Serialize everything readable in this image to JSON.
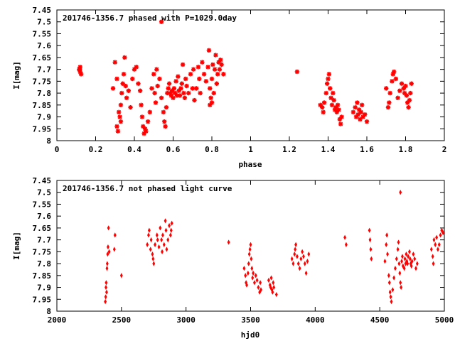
{
  "chart_data": [
    {
      "type": "scatter",
      "title": "201746-1356.7 phased with P=1029.0day",
      "xlabel": "phase",
      "ylabel": "I[mag]",
      "xlim": [
        0,
        2
      ],
      "ylim": [
        8,
        7.45
      ],
      "y_inverted": true,
      "grid": false,
      "marker": "star",
      "color": "#ff0000",
      "xticks": [
        "0",
        "0.2",
        "0.4",
        "0.6",
        "0.8",
        "1",
        "1.2",
        "1.4",
        "1.6",
        "1.8",
        "2"
      ],
      "yticks": [
        "7.45",
        "7.5",
        "7.55",
        "7.6",
        "7.65",
        "7.7",
        "7.75",
        "7.8",
        "7.85",
        "7.9",
        "7.95",
        "8"
      ],
      "points": [
        [
          0.12,
          7.69
        ],
        [
          0.115,
          7.7
        ],
        [
          0.12,
          7.71
        ],
        [
          0.125,
          7.72
        ],
        [
          0.118,
          7.7
        ],
        [
          0.29,
          7.78
        ],
        [
          0.3,
          7.67
        ],
        [
          0.31,
          7.74
        ],
        [
          0.315,
          7.96
        ],
        [
          0.31,
          7.94
        ],
        [
          0.32,
          7.88
        ],
        [
          0.325,
          7.9
        ],
        [
          0.33,
          7.92
        ],
        [
          0.33,
          7.85
        ],
        [
          0.335,
          7.8
        ],
        [
          0.34,
          7.76
        ],
        [
          0.345,
          7.72
        ],
        [
          0.35,
          7.65
        ],
        [
          0.355,
          7.77
        ],
        [
          0.36,
          7.82
        ],
        [
          0.37,
          7.79
        ],
        [
          0.38,
          7.86
        ],
        [
          0.39,
          7.74
        ],
        [
          0.4,
          7.7
        ],
        [
          0.41,
          7.69
        ],
        [
          0.42,
          7.76
        ],
        [
          0.43,
          7.79
        ],
        [
          0.435,
          7.85
        ],
        [
          0.44,
          7.9
        ],
        [
          0.445,
          7.94
        ],
        [
          0.45,
          7.97
        ],
        [
          0.455,
          7.95
        ],
        [
          0.46,
          7.96
        ],
        [
          0.47,
          7.92
        ],
        [
          0.48,
          7.88
        ],
        [
          0.49,
          7.78
        ],
        [
          0.5,
          7.72
        ],
        [
          0.505,
          7.8
        ],
        [
          0.51,
          7.84
        ],
        [
          0.515,
          7.7
        ],
        [
          0.52,
          7.77
        ],
        [
          0.53,
          7.74
        ],
        [
          0.54,
          7.82
        ],
        [
          0.55,
          7.88
        ],
        [
          0.555,
          7.92
        ],
        [
          0.56,
          7.94
        ],
        [
          0.565,
          7.86
        ],
        [
          0.57,
          7.8
        ],
        [
          0.575,
          7.78
        ],
        [
          0.58,
          7.76
        ],
        [
          0.585,
          7.8
        ],
        [
          0.59,
          7.81
        ],
        [
          0.595,
          7.79
        ],
        [
          0.6,
          7.82
        ],
        [
          0.605,
          7.78
        ],
        [
          0.61,
          7.8
        ],
        [
          0.615,
          7.75
        ],
        [
          0.62,
          7.81
        ],
        [
          0.625,
          7.73
        ],
        [
          0.63,
          7.79
        ],
        [
          0.635,
          7.81
        ],
        [
          0.64,
          7.78
        ],
        [
          0.645,
          7.76
        ],
        [
          0.65,
          7.68
        ],
        [
          0.655,
          7.8
        ],
        [
          0.66,
          7.82
        ],
        [
          0.665,
          7.74
        ],
        [
          0.67,
          7.77
        ],
        [
          0.68,
          7.8
        ],
        [
          0.69,
          7.72
        ],
        [
          0.7,
          7.78
        ],
        [
          0.705,
          7.7
        ],
        [
          0.71,
          7.83
        ],
        [
          0.72,
          7.78
        ],
        [
          0.73,
          7.69
        ],
        [
          0.735,
          7.74
        ],
        [
          0.74,
          7.8
        ],
        [
          0.75,
          7.67
        ],
        [
          0.76,
          7.72
        ],
        [
          0.77,
          7.75
        ],
        [
          0.78,
          7.69
        ],
        [
          0.785,
          7.62
        ],
        [
          0.79,
          7.78
        ],
        [
          0.795,
          7.82
        ],
        [
          0.8,
          7.74
        ],
        [
          0.805,
          7.68
        ],
        [
          0.81,
          7.8
        ],
        [
          0.815,
          7.7
        ],
        [
          0.82,
          7.64
        ],
        [
          0.825,
          7.76
        ],
        [
          0.83,
          7.72
        ],
        [
          0.835,
          7.67
        ],
        [
          0.84,
          7.7
        ],
        [
          0.845,
          7.66
        ],
        [
          0.85,
          7.68
        ],
        [
          0.86,
          7.72
        ],
        [
          0.79,
          7.85
        ],
        [
          0.8,
          7.84
        ],
        [
          1.24,
          7.71
        ],
        [
          1.36,
          7.85
        ],
        [
          1.37,
          7.86
        ],
        [
          1.375,
          7.88
        ],
        [
          1.38,
          7.84
        ],
        [
          1.39,
          7.8
        ],
        [
          1.395,
          7.76
        ],
        [
          1.4,
          7.74
        ],
        [
          1.405,
          7.72
        ],
        [
          1.41,
          7.78
        ],
        [
          1.415,
          7.82
        ],
        [
          1.42,
          7.85
        ],
        [
          1.425,
          7.8
        ],
        [
          1.43,
          7.83
        ],
        [
          1.435,
          7.87
        ],
        [
          1.44,
          7.86
        ],
        [
          1.445,
          7.88
        ],
        [
          1.45,
          7.85
        ],
        [
          1.455,
          7.87
        ],
        [
          1.46,
          7.91
        ],
        [
          1.465,
          7.93
        ],
        [
          1.47,
          7.9
        ],
        [
          1.53,
          7.88
        ],
        [
          1.54,
          7.86
        ],
        [
          1.545,
          7.9
        ],
        [
          1.55,
          7.84
        ],
        [
          1.555,
          7.89
        ],
        [
          1.56,
          7.87
        ],
        [
          1.565,
          7.91
        ],
        [
          1.57,
          7.88
        ],
        [
          1.575,
          7.85
        ],
        [
          1.58,
          7.9
        ],
        [
          1.59,
          7.89
        ],
        [
          1.6,
          7.92
        ],
        [
          1.7,
          7.78
        ],
        [
          1.71,
          7.86
        ],
        [
          1.715,
          7.84
        ],
        [
          1.72,
          7.8
        ],
        [
          1.73,
          7.75
        ],
        [
          1.735,
          7.72
        ],
        [
          1.74,
          7.71
        ],
        [
          1.75,
          7.74
        ],
        [
          1.76,
          7.82
        ],
        [
          1.77,
          7.79
        ],
        [
          1.78,
          7.76
        ],
        [
          1.79,
          7.78
        ],
        [
          1.795,
          7.8
        ],
        [
          1.8,
          7.77
        ],
        [
          1.805,
          7.81
        ],
        [
          1.81,
          7.84
        ],
        [
          1.815,
          7.86
        ],
        [
          1.82,
          7.83
        ],
        [
          1.825,
          7.8
        ],
        [
          1.83,
          7.76
        ],
        [
          0.54,
          7.5
        ]
      ]
    },
    {
      "type": "scatter",
      "title": "201746-1356.7 not phased light curve",
      "xlabel": "hjd0",
      "ylabel": "I[mag]",
      "xlim": [
        2000,
        5000
      ],
      "ylim": [
        8,
        7.45
      ],
      "y_inverted": true,
      "grid": false,
      "marker": "diamond",
      "color": "#ff0000",
      "xticks": [
        "2000",
        "2500",
        "3000",
        "3500",
        "4000",
        "4500",
        "5000"
      ],
      "yticks": [
        "7.45",
        "7.5",
        "7.55",
        "7.6",
        "7.65",
        "7.7",
        "7.75",
        "7.8",
        "7.85",
        "7.9",
        "7.95",
        "8"
      ],
      "points": [
        [
          2375,
          7.96
        ],
        [
          2378,
          7.94
        ],
        [
          2380,
          7.9
        ],
        [
          2382,
          7.88
        ],
        [
          2385,
          7.92
        ],
        [
          2388,
          7.82
        ],
        [
          2390,
          7.8
        ],
        [
          2393,
          7.76
        ],
        [
          2396,
          7.73
        ],
        [
          2400,
          7.65
        ],
        [
          2405,
          7.75
        ],
        [
          2445,
          7.74
        ],
        [
          2450,
          7.68
        ],
        [
          2500,
          7.85
        ],
        [
          2700,
          7.72
        ],
        [
          2710,
          7.68
        ],
        [
          2715,
          7.66
        ],
        [
          2725,
          7.74
        ],
        [
          2730,
          7.7
        ],
        [
          2740,
          7.76
        ],
        [
          2745,
          7.78
        ],
        [
          2750,
          7.8
        ],
        [
          2760,
          7.72
        ],
        [
          2775,
          7.68
        ],
        [
          2780,
          7.7
        ],
        [
          2790,
          7.73
        ],
        [
          2800,
          7.65
        ],
        [
          2810,
          7.7
        ],
        [
          2815,
          7.75
        ],
        [
          2820,
          7.68
        ],
        [
          2830,
          7.72
        ],
        [
          2840,
          7.62
        ],
        [
          2845,
          7.66
        ],
        [
          2850,
          7.74
        ],
        [
          2860,
          7.7
        ],
        [
          2870,
          7.64
        ],
        [
          2880,
          7.68
        ],
        [
          2885,
          7.66
        ],
        [
          2890,
          7.63
        ],
        [
          3330,
          7.71
        ],
        [
          3450,
          7.82
        ],
        [
          3460,
          7.85
        ],
        [
          3465,
          7.88
        ],
        [
          3470,
          7.89
        ],
        [
          3480,
          7.84
        ],
        [
          3485,
          7.8
        ],
        [
          3490,
          7.76
        ],
        [
          3495,
          7.74
        ],
        [
          3500,
          7.72
        ],
        [
          3505,
          7.78
        ],
        [
          3510,
          7.82
        ],
        [
          3515,
          7.86
        ],
        [
          3520,
          7.84
        ],
        [
          3530,
          7.88
        ],
        [
          3540,
          7.85
        ],
        [
          3550,
          7.87
        ],
        [
          3560,
          7.9
        ],
        [
          3570,
          7.92
        ],
        [
          3575,
          7.88
        ],
        [
          3580,
          7.91
        ],
        [
          3640,
          7.87
        ],
        [
          3650,
          7.89
        ],
        [
          3655,
          7.9
        ],
        [
          3660,
          7.86
        ],
        [
          3665,
          7.91
        ],
        [
          3670,
          7.92
        ],
        [
          3675,
          7.88
        ],
        [
          3680,
          7.9
        ],
        [
          3700,
          7.93
        ],
        [
          3820,
          7.78
        ],
        [
          3830,
          7.8
        ],
        [
          3840,
          7.76
        ],
        [
          3845,
          7.74
        ],
        [
          3850,
          7.72
        ],
        [
          3860,
          7.77
        ],
        [
          3870,
          7.8
        ],
        [
          3880,
          7.82
        ],
        [
          3890,
          7.78
        ],
        [
          3900,
          7.75
        ],
        [
          3910,
          7.77
        ],
        [
          3920,
          7.8
        ],
        [
          3930,
          7.84
        ],
        [
          3940,
          7.79
        ],
        [
          3950,
          7.76
        ],
        [
          4230,
          7.69
        ],
        [
          4240,
          7.72
        ],
        [
          4420,
          7.66
        ],
        [
          4425,
          7.7
        ],
        [
          4430,
          7.74
        ],
        [
          4435,
          7.78
        ],
        [
          4540,
          7.79
        ],
        [
          4550,
          7.72
        ],
        [
          4555,
          7.68
        ],
        [
          4560,
          7.76
        ],
        [
          4570,
          7.85
        ],
        [
          4575,
          7.88
        ],
        [
          4580,
          7.92
        ],
        [
          4585,
          7.94
        ],
        [
          4590,
          7.96
        ],
        [
          4600,
          7.91
        ],
        [
          4610,
          7.86
        ],
        [
          4620,
          7.82
        ],
        [
          4630,
          7.78
        ],
        [
          4640,
          7.74
        ],
        [
          4645,
          7.71
        ],
        [
          4650,
          7.8
        ],
        [
          4655,
          7.84
        ],
        [
          4660,
          7.88
        ],
        [
          4665,
          7.9
        ],
        [
          4670,
          7.79
        ],
        [
          4675,
          7.77
        ],
        [
          4680,
          7.81
        ],
        [
          4690,
          7.82
        ],
        [
          4695,
          7.78
        ],
        [
          4700,
          7.8
        ],
        [
          4705,
          7.76
        ],
        [
          4710,
          7.79
        ],
        [
          4715,
          7.8
        ],
        [
          4720,
          7.77
        ],
        [
          4730,
          7.75
        ],
        [
          4735,
          7.78
        ],
        [
          4740,
          7.8
        ],
        [
          4745,
          7.81
        ],
        [
          4750,
          7.79
        ],
        [
          4760,
          7.76
        ],
        [
          4770,
          7.78
        ],
        [
          4780,
          7.82
        ],
        [
          4790,
          7.8
        ],
        [
          4900,
          7.74
        ],
        [
          4910,
          7.77
        ],
        [
          4915,
          7.8
        ],
        [
          4920,
          7.7
        ],
        [
          4930,
          7.72
        ],
        [
          4940,
          7.69
        ],
        [
          4950,
          7.74
        ],
        [
          4960,
          7.72
        ],
        [
          4970,
          7.68
        ],
        [
          4980,
          7.66
        ],
        [
          4990,
          7.67
        ],
        [
          4660,
          7.5
        ]
      ]
    }
  ]
}
